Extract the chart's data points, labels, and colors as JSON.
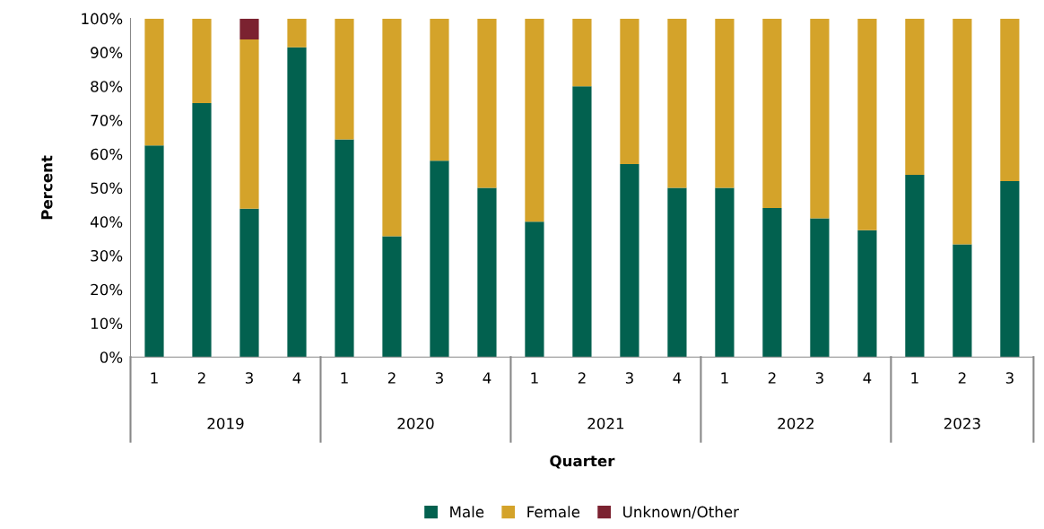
{
  "chart_data": {
    "type": "bar",
    "stacked": true,
    "xlabel": "Quarter",
    "ylabel": "Percent",
    "categories": [
      "1",
      "2",
      "3",
      "4",
      "1",
      "2",
      "3",
      "4",
      "1",
      "2",
      "3",
      "4",
      "1",
      "2",
      "3",
      "4",
      "1",
      "2",
      "3"
    ],
    "annotations": [
      "2019",
      "2020",
      "2021",
      "2022",
      "2023"
    ],
    "series": [
      {
        "name": "Male",
        "color": "#02614f",
        "values": [
          62.5,
          75,
          43.8,
          91.5,
          64.3,
          35.7,
          58,
          50,
          40,
          80,
          57,
          50,
          50,
          44,
          41,
          37.5,
          53.8,
          33.3,
          52
        ]
      },
      {
        "name": "Female",
        "color": "#d4a32a",
        "values": [
          37.5,
          25,
          50,
          8.5,
          35.7,
          64.3,
          42,
          50,
          60,
          20,
          43,
          50,
          50,
          56,
          59,
          62.5,
          46.2,
          66.7,
          48
        ]
      },
      {
        "name": "Unknown/Other",
        "color": "#7b2230",
        "values": [
          0,
          0,
          6.2,
          0,
          0,
          0,
          0,
          0,
          0,
          0,
          0,
          0,
          0,
          0,
          0,
          0,
          0,
          0,
          0
        ]
      }
    ],
    "ylim": [
      0,
      100
    ],
    "yticks": [
      {
        "value": 0,
        "label": "0%"
      },
      {
        "value": 10,
        "label": "10%"
      },
      {
        "value": 20,
        "label": "20%"
      },
      {
        "value": 30,
        "label": "30%"
      },
      {
        "value": 40,
        "label": "40%"
      },
      {
        "value": 50,
        "label": "50%"
      },
      {
        "value": 60,
        "label": "60%"
      },
      {
        "value": 70,
        "label": "70%"
      },
      {
        "value": 80,
        "label": "80%"
      },
      {
        "value": 90,
        "label": "90%"
      },
      {
        "value": 100,
        "label": "100%"
      }
    ],
    "grid": false,
    "legend": "bottom"
  }
}
